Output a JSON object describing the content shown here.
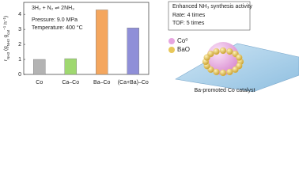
{
  "chart_data": {
    "type": "bar",
    "y_label": [
      {
        "text": "r"
      },
      {
        "text": "NH3",
        "shift": "sub"
      },
      {
        "text": " (g"
      },
      {
        "text": "NH3",
        "shift": "sub"
      },
      {
        "text": " g"
      },
      {
        "text": "cat",
        "shift": "sub"
      },
      {
        "text": "−1",
        "shift": "super"
      },
      {
        "text": " h"
      },
      {
        "text": "−1",
        "shift": "super"
      },
      {
        "text": ")"
      }
    ],
    "annotations": [
      "3H₂ + N₂ ⇌ 2NH₃",
      "Pressure: 9.0 MPa",
      "Temperature: 400 °C"
    ],
    "categories": [
      "Co",
      "Ca–Co",
      "Ba–Co",
      "(Ca+Ba)–Co"
    ],
    "values": [
      1.0,
      1.05,
      4.3,
      3.1
    ],
    "colors": [
      "#b3b3b3",
      "#9fd870",
      "#f4a65e",
      "#8f8fd8"
    ],
    "ylim": [
      0,
      4.8
    ],
    "yticks": [
      0,
      1,
      2,
      3,
      4
    ]
  },
  "illustration": {
    "box": [
      "Enhanced NH₃ synthesis activity",
      "Rate: 4 times",
      "TOF: 5 times"
    ],
    "legend": [
      {
        "name": "Co⁰",
        "color": "#e6a6e0"
      },
      {
        "name": "BaO",
        "color": "#e8c85a"
      }
    ],
    "caption": "Ba-promoted Co catalyst"
  }
}
